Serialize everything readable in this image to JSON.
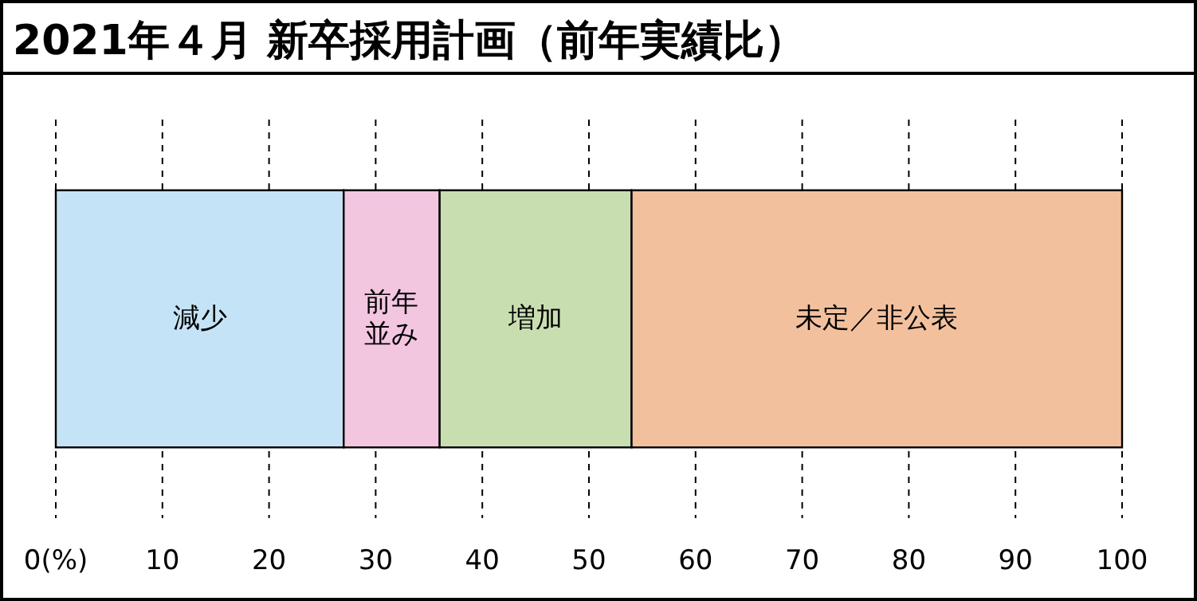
{
  "chart_data": {
    "type": "bar",
    "orientation": "horizontal",
    "stacked": true,
    "title": "2021年４月 新卒採用計画（前年実績比）",
    "categories": [
      null
    ],
    "series": [
      {
        "name": "減少",
        "color": "#c5e3f6",
        "values": [
          27
        ]
      },
      {
        "name": "前年並み",
        "color": "#f3c6e0",
        "values": [
          9
        ]
      },
      {
        "name": "増加",
        "color": "#c9deb0",
        "values": [
          18
        ]
      },
      {
        "name": "未定／非公表",
        "color": "#f3c09e",
        "values": [
          46
        ]
      }
    ],
    "xlim": [
      0,
      100
    ],
    "xticks": [
      {
        "value": 0,
        "label": "0(%)"
      },
      10,
      20,
      30,
      40,
      50,
      60,
      70,
      80,
      90,
      100
    ],
    "grid": "x"
  }
}
